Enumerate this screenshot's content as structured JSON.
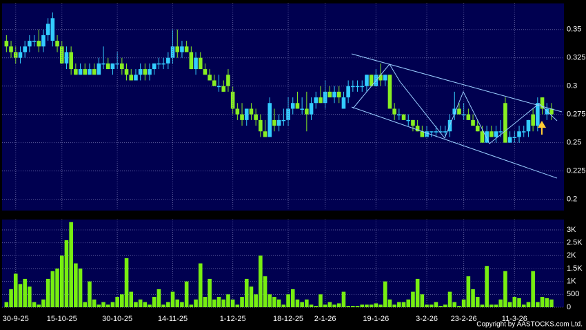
{
  "chart_data": [
    {
      "type": "candlestick",
      "up_color": "#33ccff",
      "down_color": "#88ee22",
      "grid": true,
      "ylim": [
        0.19,
        0.373
      ],
      "yticks": [
        0.2,
        0.225,
        0.25,
        0.275,
        0.3,
        0.325,
        0.35
      ],
      "categories": [
        null,
        null,
        "30-9-25",
        null,
        null,
        null,
        null,
        null,
        null,
        null,
        null,
        null,
        "15-10-25",
        null,
        null,
        null,
        null,
        null,
        null,
        null,
        null,
        null,
        null,
        null,
        "30-10-25",
        null,
        null,
        null,
        null,
        null,
        null,
        null,
        null,
        null,
        null,
        null,
        "14-11-25",
        null,
        null,
        null,
        null,
        null,
        null,
        null,
        null,
        null,
        null,
        null,
        null,
        "1-12-25",
        null,
        null,
        null,
        null,
        null,
        null,
        null,
        null,
        null,
        null,
        null,
        "18-12-25",
        null,
        null,
        null,
        null,
        null,
        null,
        null,
        "2-1-26",
        null,
        null,
        null,
        null,
        null,
        null,
        null,
        null,
        null,
        null,
        "19-1-26",
        null,
        null,
        null,
        null,
        null,
        null,
        null,
        null,
        null,
        null,
        "3-2-26",
        null,
        null,
        null,
        null,
        null,
        null,
        null,
        "23-2-26",
        null,
        null,
        null,
        null,
        null,
        null,
        null,
        null,
        null,
        null,
        "11-3-26",
        null,
        null,
        null,
        null,
        null,
        null,
        null,
        null
      ],
      "ohlc": [
        [
          0.34,
          0.345,
          0.33,
          0.335
        ],
        [
          0.335,
          0.34,
          0.325,
          0.33
        ],
        [
          0.33,
          0.335,
          0.32,
          0.325
        ],
        [
          0.325,
          0.335,
          0.32,
          0.33
        ],
        [
          0.33,
          0.34,
          0.325,
          0.335
        ],
        [
          0.335,
          0.345,
          0.33,
          0.34
        ],
        [
          0.34,
          0.345,
          0.335,
          0.34
        ],
        [
          0.34,
          0.35,
          0.33,
          0.335
        ],
        [
          0.335,
          0.35,
          0.33,
          0.345
        ],
        [
          0.345,
          0.36,
          0.34,
          0.355
        ],
        [
          0.34,
          0.365,
          0.335,
          0.36
        ],
        [
          0.34,
          0.345,
          0.33,
          0.335
        ],
        [
          0.335,
          0.34,
          0.32,
          0.32
        ],
        [
          0.32,
          0.335,
          0.315,
          0.33
        ],
        [
          0.33,
          0.335,
          0.31,
          0.315
        ],
        [
          0.315,
          0.32,
          0.31,
          0.31
        ],
        [
          0.31,
          0.32,
          0.31,
          0.315
        ],
        [
          0.315,
          0.32,
          0.31,
          0.31
        ],
        [
          0.31,
          0.32,
          0.31,
          0.315
        ],
        [
          0.315,
          0.32,
          0.31,
          0.31
        ],
        [
          0.31,
          0.325,
          0.31,
          0.32
        ],
        [
          0.32,
          0.335,
          0.315,
          0.32
        ],
        [
          0.32,
          0.325,
          0.315,
          0.315
        ],
        [
          0.315,
          0.32,
          0.31,
          0.32
        ],
        [
          0.32,
          0.33,
          0.315,
          0.32
        ],
        [
          0.32,
          0.325,
          0.31,
          0.315
        ],
        [
          0.315,
          0.32,
          0.305,
          0.31
        ],
        [
          0.31,
          0.315,
          0.305,
          0.305
        ],
        [
          0.305,
          0.315,
          0.305,
          0.31
        ],
        [
          0.31,
          0.32,
          0.305,
          0.315
        ],
        [
          0.315,
          0.32,
          0.305,
          0.31
        ],
        [
          0.31,
          0.32,
          0.305,
          0.315
        ],
        [
          0.315,
          0.32,
          0.31,
          0.32
        ],
        [
          0.32,
          0.325,
          0.315,
          0.32
        ],
        [
          0.32,
          0.325,
          0.315,
          0.32
        ],
        [
          0.32,
          0.33,
          0.315,
          0.325
        ],
        [
          0.325,
          0.35,
          0.32,
          0.335
        ],
        [
          0.335,
          0.35,
          0.325,
          0.33
        ],
        [
          0.33,
          0.34,
          0.325,
          0.335
        ],
        [
          0.335,
          0.34,
          0.33,
          0.33
        ],
        [
          0.33,
          0.335,
          0.315,
          0.315
        ],
        [
          0.315,
          0.33,
          0.31,
          0.325
        ],
        [
          0.325,
          0.33,
          0.315,
          0.315
        ],
        [
          0.315,
          0.32,
          0.31,
          0.31
        ],
        [
          0.31,
          0.315,
          0.305,
          0.305
        ],
        [
          0.305,
          0.31,
          0.3,
          0.3
        ],
        [
          0.3,
          0.31,
          0.295,
          0.3
        ],
        [
          0.3,
          0.305,
          0.295,
          0.295
        ],
        [
          0.31,
          0.315,
          0.295,
          0.3
        ],
        [
          0.295,
          0.3,
          0.275,
          0.28
        ],
        [
          0.28,
          0.285,
          0.27,
          0.275
        ],
        [
          0.275,
          0.285,
          0.265,
          0.27
        ],
        [
          0.27,
          0.28,
          0.265,
          0.28
        ],
        [
          0.28,
          0.285,
          0.27,
          0.275
        ],
        [
          0.275,
          0.28,
          0.265,
          0.27
        ],
        [
          0.27,
          0.275,
          0.255,
          0.26
        ],
        [
          0.26,
          0.27,
          0.255,
          0.255
        ],
        [
          0.255,
          0.29,
          0.255,
          0.285
        ],
        [
          0.27,
          0.28,
          0.26,
          0.265
        ],
        [
          0.265,
          0.275,
          0.26,
          0.27
        ],
        [
          0.27,
          0.28,
          0.265,
          0.27
        ],
        [
          0.27,
          0.29,
          0.265,
          0.28
        ],
        [
          0.28,
          0.29,
          0.275,
          0.285
        ],
        [
          0.285,
          0.295,
          0.28,
          0.28
        ],
        [
          0.28,
          0.29,
          0.275,
          0.28
        ],
        [
          0.28,
          0.295,
          0.26,
          0.275
        ],
        [
          0.275,
          0.29,
          0.27,
          0.285
        ],
        [
          0.285,
          0.295,
          0.28,
          0.29
        ],
        [
          0.29,
          0.3,
          0.285,
          0.285
        ],
        [
          0.285,
          0.305,
          0.28,
          0.295
        ],
        [
          0.295,
          0.3,
          0.29,
          0.29
        ],
        [
          0.29,
          0.3,
          0.285,
          0.295
        ],
        [
          0.295,
          0.3,
          0.285,
          0.29
        ],
        [
          0.28,
          0.295,
          0.28,
          0.29
        ],
        [
          0.29,
          0.305,
          0.285,
          0.3
        ],
        [
          0.3,
          0.305,
          0.295,
          0.3
        ],
        [
          0.3,
          0.305,
          0.295,
          0.3
        ],
        [
          0.3,
          0.305,
          0.295,
          0.3
        ],
        [
          0.3,
          0.31,
          0.295,
          0.31
        ],
        [
          0.31,
          0.31,
          0.3,
          0.3
        ],
        [
          0.3,
          0.315,
          0.3,
          0.31
        ],
        [
          0.31,
          0.32,
          0.3,
          0.305
        ],
        [
          0.305,
          0.31,
          0.3,
          0.31
        ],
        [
          0.31,
          0.31,
          0.28,
          0.28
        ],
        [
          0.28,
          0.285,
          0.27,
          0.275
        ],
        [
          0.275,
          0.28,
          0.27,
          0.275
        ],
        [
          0.275,
          0.275,
          0.27,
          0.27
        ],
        [
          0.27,
          0.275,
          0.265,
          0.27
        ],
        [
          0.27,
          0.27,
          0.26,
          0.265
        ],
        [
          0.265,
          0.27,
          0.26,
          0.26
        ],
        [
          0.26,
          0.265,
          0.255,
          0.255
        ],
        [
          0.255,
          0.265,
          0.255,
          0.26
        ],
        [
          0.26,
          0.26,
          0.255,
          0.26
        ],
        [
          0.26,
          0.265,
          0.255,
          0.26
        ],
        [
          0.26,
          0.265,
          0.26,
          0.26
        ],
        [
          0.26,
          0.265,
          0.255,
          0.26
        ],
        [
          0.26,
          0.275,
          0.255,
          0.27
        ],
        [
          0.275,
          0.295,
          0.27,
          0.28
        ],
        [
          0.28,
          0.285,
          0.275,
          0.275
        ],
        [
          0.275,
          0.285,
          0.27,
          0.275
        ],
        [
          0.275,
          0.28,
          0.27,
          0.27
        ],
        [
          0.27,
          0.275,
          0.265,
          0.265
        ],
        [
          0.265,
          0.27,
          0.26,
          0.26
        ],
        [
          0.26,
          0.265,
          0.25,
          0.25
        ],
        [
          0.25,
          0.265,
          0.25,
          0.26
        ],
        [
          0.26,
          0.265,
          0.255,
          0.255
        ],
        [
          0.255,
          0.265,
          0.25,
          0.26
        ],
        [
          0.26,
          0.27,
          0.255,
          0.26
        ],
        [
          0.285,
          0.29,
          0.25,
          0.25
        ],
        [
          0.25,
          0.26,
          0.25,
          0.255
        ],
        [
          0.255,
          0.26,
          0.25,
          0.255
        ],
        [
          0.255,
          0.265,
          0.25,
          0.26
        ],
        [
          0.26,
          0.265,
          0.255,
          0.26
        ],
        [
          0.26,
          0.27,
          0.255,
          0.27
        ],
        [
          0.275,
          0.28,
          0.26,
          0.265
        ],
        [
          0.265,
          0.29,
          0.26,
          0.285
        ],
        [
          0.29,
          0.29,
          0.275,
          0.28
        ],
        [
          0.275,
          0.285,
          0.27,
          0.28
        ],
        [
          0.28,
          0.285,
          0.27,
          0.275
        ]
      ]
    },
    {
      "type": "bar",
      "color": "#77ee11",
      "grid": true,
      "ylim": [
        0,
        3400
      ],
      "yticks": [
        0,
        500,
        {
          "value": 1000,
          "label": "1K"
        },
        {
          "value": 1500,
          "label": "1.5K"
        },
        {
          "value": 2000,
          "label": "2K"
        },
        {
          "value": 2500,
          "label": "2.5K"
        },
        {
          "value": 3000,
          "label": "3K"
        }
      ],
      "values": [
        200,
        700,
        1300,
        900,
        1100,
        800,
        200,
        100,
        300,
        1100,
        1400,
        1500,
        2000,
        2600,
        3300,
        1700,
        1500,
        200,
        1000,
        300,
        100,
        200,
        100,
        200,
        400,
        500,
        1900,
        600,
        200,
        300,
        200,
        100,
        400,
        700,
        100,
        200,
        600,
        300,
        200,
        1000,
        100,
        300,
        1700,
        400,
        1100,
        300,
        400,
        300,
        500,
        300,
        100,
        400,
        1100,
        800,
        500,
        2000,
        1200,
        500,
        400,
        300,
        100,
        500,
        700,
        300,
        200,
        300,
        100,
        50,
        500,
        100,
        200,
        100,
        150,
        600,
        50,
        50,
        50,
        100,
        100,
        100,
        150,
        100,
        1000,
        300,
        100,
        200,
        200,
        300,
        600,
        1100,
        500,
        100,
        100,
        200,
        50,
        100,
        600,
        200,
        50,
        300,
        1200,
        700,
        400,
        100,
        1600,
        100,
        100,
        300,
        1400,
        200,
        400,
        350,
        100,
        200,
        1400,
        200,
        400,
        350,
        300
      ],
      "copyright": "Copyright by AASTOCKS.com Ltd."
    }
  ]
}
